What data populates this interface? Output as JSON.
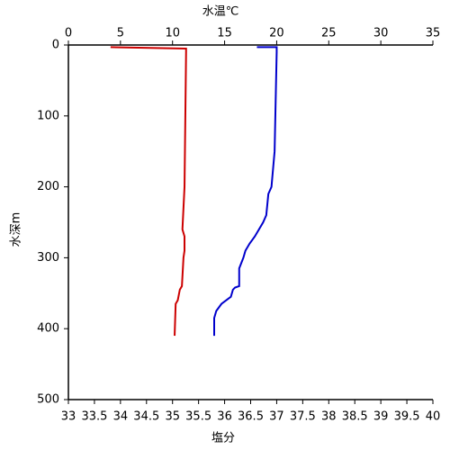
{
  "chart_data": {
    "type": "line",
    "xlabel": "塩分",
    "x2label": "水温℃",
    "ylabel": "水深m",
    "xlim": [
      33,
      40
    ],
    "xticks": [
      33,
      33.5,
      34,
      34.5,
      35,
      35.5,
      36,
      36.5,
      37,
      37.5,
      38,
      38.5,
      39,
      39.5,
      40
    ],
    "x2lim": [
      0,
      35
    ],
    "x2ticks": [
      0,
      5,
      10,
      15,
      20,
      25,
      30,
      35
    ],
    "ylim": [
      500,
      0
    ],
    "yticks": [
      0,
      100,
      200,
      300,
      400,
      500
    ],
    "xlabel_color": "#cc0000",
    "x2label_color": "#0000cc",
    "series": [
      {
        "color": "#0000cc",
        "axis": "x2",
        "x": [
          18.1,
          20.0,
          20.0,
          19.8,
          19.5,
          19.2,
          19.0,
          18.7,
          17.9,
          17.4,
          17.0,
          16.8,
          16.4,
          16.4,
          16.0,
          15.8,
          15.6,
          14.7,
          14.2,
          14.0,
          14.0
        ],
        "values": [
          3,
          3,
          10,
          150,
          200,
          210,
          240,
          250,
          270,
          280,
          290,
          300,
          315,
          340,
          342,
          345,
          355,
          365,
          375,
          385,
          410
        ]
      },
      {
        "color": "#cc0000",
        "axis": "x",
        "x": [
          33.81,
          35.26,
          35.26,
          35.23,
          35.19,
          35.23,
          35.23,
          35.21,
          35.18,
          35.14,
          35.1,
          35.06,
          35.04
        ],
        "values": [
          3,
          5,
          10,
          200,
          260,
          270,
          290,
          300,
          340,
          345,
          360,
          365,
          410
        ]
      }
    ]
  }
}
